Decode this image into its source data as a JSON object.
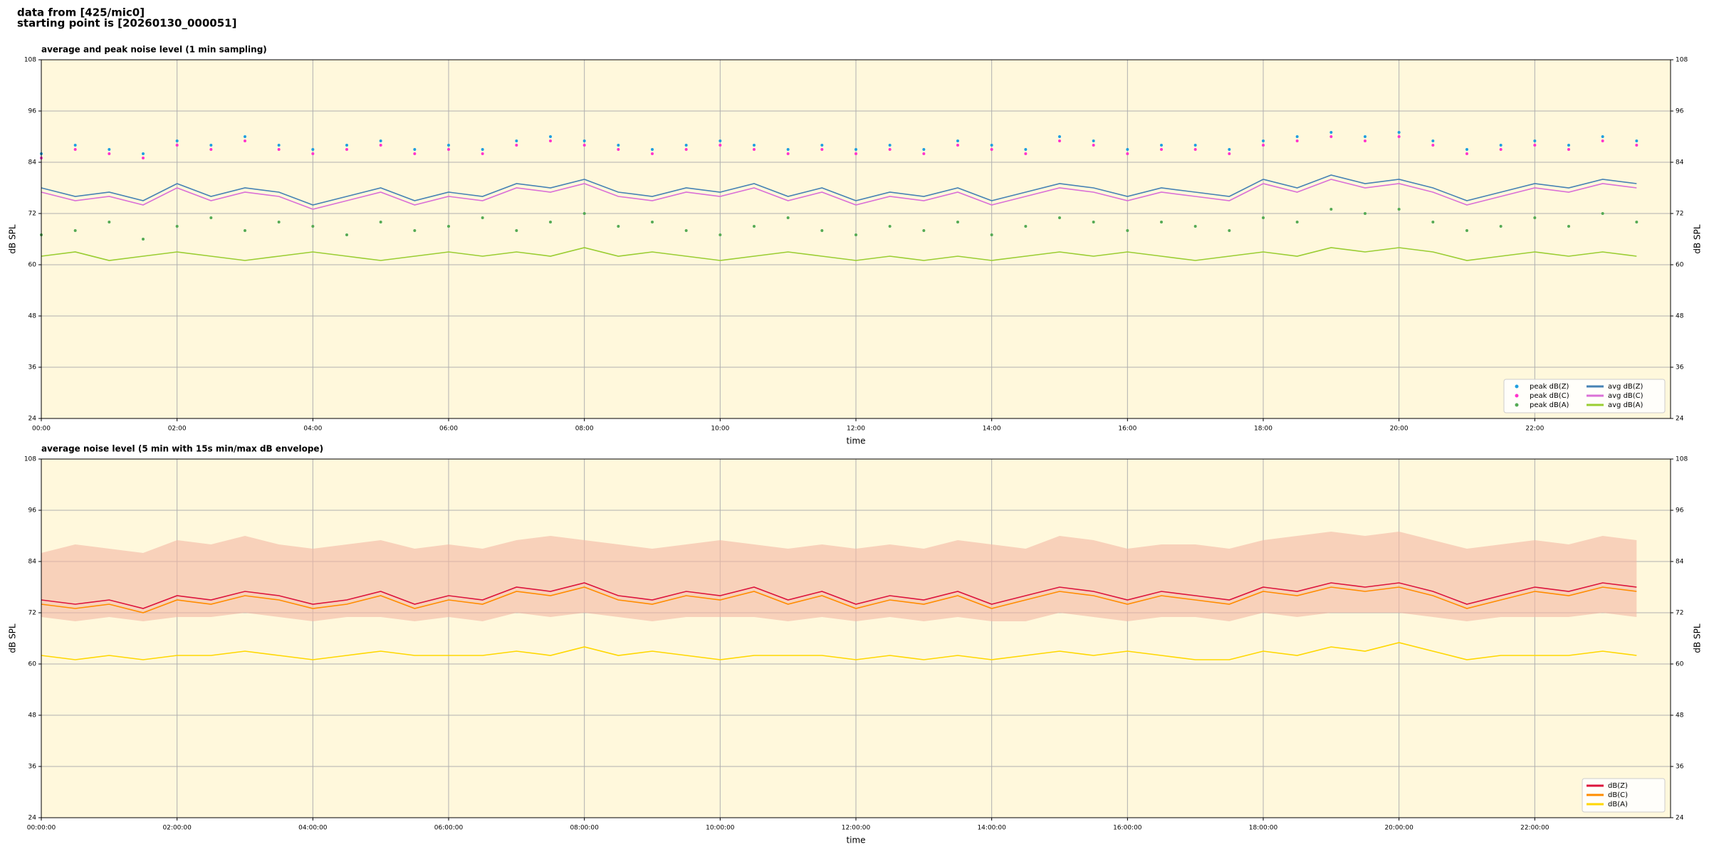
{
  "header": {
    "lines": [
      "data from [425/mic0]",
      "starting point is [20260130_000051]"
    ]
  },
  "chart_data": [
    {
      "type": "line",
      "title": "average and peak noise level (1 min sampling)",
      "x_label": "time",
      "y_label": "dB SPL",
      "x": [
        0,
        0.5,
        1,
        1.5,
        2,
        2.5,
        3,
        3.5,
        4,
        4.5,
        5,
        5.5,
        6,
        6.5,
        7,
        7.5,
        8,
        8.5,
        9,
        9.5,
        10,
        10.5,
        11,
        11.5,
        12,
        12.5,
        13,
        13.5,
        14,
        14.5,
        15,
        15.5,
        16,
        16.5,
        17,
        17.5,
        18,
        18.5,
        19,
        19.5,
        20,
        20.5,
        21,
        21.5,
        22,
        22.5,
        23,
        23.5
      ],
      "xlim": [
        0,
        24
      ],
      "xticks": [
        {
          "value": 0,
          "label": "00:00"
        },
        {
          "value": 2,
          "label": "02:00"
        },
        {
          "value": 4,
          "label": "04:00"
        },
        {
          "value": 6,
          "label": "06:00"
        },
        {
          "value": 8,
          "label": "08:00"
        },
        {
          "value": 10,
          "label": "10:00"
        },
        {
          "value": 12,
          "label": "12:00"
        },
        {
          "value": 14,
          "label": "14:00"
        },
        {
          "value": 16,
          "label": "16:00"
        },
        {
          "value": 18,
          "label": "18:00"
        },
        {
          "value": 20,
          "label": "20:00"
        },
        {
          "value": 22,
          "label": "22:00"
        }
      ],
      "ylim": [
        24,
        108
      ],
      "yticks": [
        24,
        36,
        48,
        60,
        72,
        84,
        96,
        108
      ],
      "grid": true,
      "legend": "lower right",
      "legend_columns": 2,
      "series": [
        {
          "name": "peak dB(Z)",
          "type": "scatter",
          "color": "#1f9fe0",
          "values": [
            86,
            88,
            87,
            86,
            89,
            88,
            90,
            88,
            87,
            88,
            89,
            87,
            88,
            87,
            89,
            90,
            89,
            88,
            87,
            88,
            89,
            88,
            87,
            88,
            87,
            88,
            87,
            89,
            88,
            87,
            90,
            89,
            87,
            88,
            88,
            87,
            89,
            90,
            91,
            90,
            91,
            89,
            87,
            88,
            89,
            88,
            90,
            89
          ]
        },
        {
          "name": "peak dB(C)",
          "type": "scatter",
          "color": "#ff33cc",
          "values": [
            85,
            87,
            86,
            85,
            88,
            87,
            89,
            87,
            86,
            87,
            88,
            86,
            87,
            86,
            88,
            89,
            88,
            87,
            86,
            87,
            88,
            87,
            86,
            87,
            86,
            87,
            86,
            88,
            87,
            86,
            89,
            88,
            86,
            87,
            87,
            86,
            88,
            89,
            90,
            89,
            90,
            88,
            86,
            87,
            88,
            87,
            89,
            88
          ]
        },
        {
          "name": "peak dB(A)",
          "type": "scatter",
          "color": "#55aa55",
          "values": [
            67,
            68,
            70,
            66,
            69,
            71,
            68,
            70,
            69,
            67,
            70,
            68,
            69,
            71,
            68,
            70,
            72,
            69,
            70,
            68,
            67,
            69,
            71,
            68,
            67,
            69,
            68,
            70,
            67,
            69,
            71,
            70,
            68,
            70,
            69,
            68,
            71,
            70,
            73,
            72,
            73,
            70,
            68,
            69,
            71,
            69,
            72,
            70
          ]
        },
        {
          "name": "avg dB(Z)",
          "type": "line",
          "color": "#4682b4",
          "values": [
            78,
            76,
            77,
            75,
            79,
            76,
            78,
            77,
            74,
            76,
            78,
            75,
            77,
            76,
            79,
            78,
            80,
            77,
            76,
            78,
            77,
            79,
            76,
            78,
            75,
            77,
            76,
            78,
            75,
            77,
            79,
            78,
            76,
            78,
            77,
            76,
            80,
            78,
            81,
            79,
            80,
            78,
            75,
            77,
            79,
            78,
            80,
            79
          ]
        },
        {
          "name": "avg dB(C)",
          "type": "line",
          "color": "#da70d6",
          "values": [
            77,
            75,
            76,
            74,
            78,
            75,
            77,
            76,
            73,
            75,
            77,
            74,
            76,
            75,
            78,
            77,
            79,
            76,
            75,
            77,
            76,
            78,
            75,
            77,
            74,
            76,
            75,
            77,
            74,
            76,
            78,
            77,
            75,
            77,
            76,
            75,
            79,
            77,
            80,
            78,
            79,
            77,
            74,
            76,
            78,
            77,
            79,
            78
          ]
        },
        {
          "name": "avg dB(A)",
          "type": "line",
          "color": "#9acd32",
          "values": [
            62,
            63,
            61,
            62,
            63,
            62,
            61,
            62,
            63,
            62,
            61,
            62,
            63,
            62,
            63,
            62,
            64,
            62,
            63,
            62,
            61,
            62,
            63,
            62,
            61,
            62,
            61,
            62,
            61,
            62,
            63,
            62,
            63,
            62,
            61,
            62,
            63,
            62,
            64,
            63,
            64,
            63,
            61,
            62,
            63,
            62,
            63,
            62
          ]
        }
      ]
    },
    {
      "type": "line",
      "title": "average noise level (5 min with 15s min/max dB envelope)",
      "x_label": "time",
      "y_label": "dB SPL",
      "x": [
        0,
        0.5,
        1,
        1.5,
        2,
        2.5,
        3,
        3.5,
        4,
        4.5,
        5,
        5.5,
        6,
        6.5,
        7,
        7.5,
        8,
        8.5,
        9,
        9.5,
        10,
        10.5,
        11,
        11.5,
        12,
        12.5,
        13,
        13.5,
        14,
        14.5,
        15,
        15.5,
        16,
        16.5,
        17,
        17.5,
        18,
        18.5,
        19,
        19.5,
        20,
        20.5,
        21,
        21.5,
        22,
        22.5,
        23,
        23.5
      ],
      "xlim": [
        0,
        24
      ],
      "xticks": [
        {
          "value": 0,
          "label": "00:00:00"
        },
        {
          "value": 2,
          "label": "02:00:00"
        },
        {
          "value": 4,
          "label": "04:00:00"
        },
        {
          "value": 6,
          "label": "06:00:00"
        },
        {
          "value": 8,
          "label": "08:00:00"
        },
        {
          "value": 10,
          "label": "10:00:00"
        },
        {
          "value": 12,
          "label": "12:00:00"
        },
        {
          "value": 14,
          "label": "14:00:00"
        },
        {
          "value": 16,
          "label": "16:00:00"
        },
        {
          "value": 18,
          "label": "18:00:00"
        },
        {
          "value": 20,
          "label": "20:00:00"
        },
        {
          "value": 22,
          "label": "22:00:00"
        }
      ],
      "ylim": [
        24,
        108
      ],
      "yticks": [
        24,
        36,
        48,
        60,
        72,
        84,
        96,
        108
      ],
      "grid": true,
      "legend": "lower right",
      "legend_columns": 1,
      "envelope": {
        "color": "#f4b8a4",
        "upper": [
          86,
          88,
          87,
          86,
          89,
          88,
          90,
          88,
          87,
          88,
          89,
          87,
          88,
          87,
          89,
          90,
          89,
          88,
          87,
          88,
          89,
          88,
          87,
          88,
          87,
          88,
          87,
          89,
          88,
          87,
          90,
          89,
          87,
          88,
          88,
          87,
          89,
          90,
          91,
          90,
          91,
          89,
          87,
          88,
          89,
          88,
          90,
          89
        ],
        "lower": [
          71,
          70,
          71,
          70,
          71,
          71,
          72,
          71,
          70,
          71,
          71,
          70,
          71,
          70,
          72,
          71,
          72,
          71,
          70,
          71,
          71,
          71,
          70,
          71,
          70,
          71,
          70,
          71,
          70,
          70,
          72,
          71,
          70,
          71,
          71,
          70,
          72,
          71,
          72,
          72,
          72,
          71,
          70,
          71,
          71,
          71,
          72,
          71
        ]
      },
      "series": [
        {
          "name": "dB(Z)",
          "type": "line",
          "color": "#dc143c",
          "values": [
            75,
            74,
            75,
            73,
            76,
            75,
            77,
            76,
            74,
            75,
            77,
            74,
            76,
            75,
            78,
            77,
            79,
            76,
            75,
            77,
            76,
            78,
            75,
            77,
            74,
            76,
            75,
            77,
            74,
            76,
            78,
            77,
            75,
            77,
            76,
            75,
            78,
            77,
            79,
            78,
            79,
            77,
            74,
            76,
            78,
            77,
            79,
            78
          ]
        },
        {
          "name": "dB(C)",
          "type": "line",
          "color": "#ff8c00",
          "values": [
            74,
            73,
            74,
            72,
            75,
            74,
            76,
            75,
            73,
            74,
            76,
            73,
            75,
            74,
            77,
            76,
            78,
            75,
            74,
            76,
            75,
            77,
            74,
            76,
            73,
            75,
            74,
            76,
            73,
            75,
            77,
            76,
            74,
            76,
            75,
            74,
            77,
            76,
            78,
            77,
            78,
            76,
            73,
            75,
            77,
            76,
            78,
            77
          ]
        },
        {
          "name": "dB(A)",
          "type": "line",
          "color": "#ffd700",
          "values": [
            62,
            61,
            62,
            61,
            62,
            62,
            63,
            62,
            61,
            62,
            63,
            62,
            62,
            62,
            63,
            62,
            64,
            62,
            63,
            62,
            61,
            62,
            62,
            62,
            61,
            62,
            61,
            62,
            61,
            62,
            63,
            62,
            63,
            62,
            61,
            61,
            63,
            62,
            64,
            63,
            65,
            63,
            61,
            62,
            62,
            62,
            63,
            62
          ]
        }
      ]
    }
  ]
}
